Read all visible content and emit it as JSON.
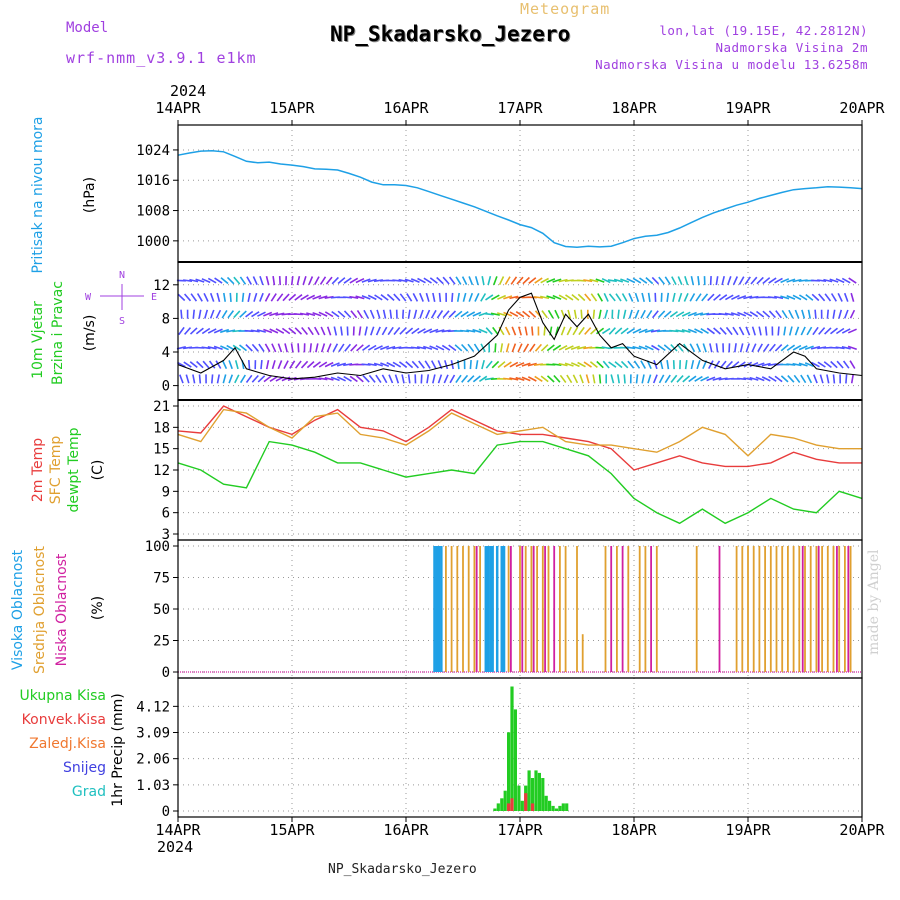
{
  "header": {
    "model_label": "Model",
    "model_name": "wrf-nmm_v3.9.1 e1km",
    "meteogram": "Meteogram",
    "station": "NP_Skadarsko_Jezero",
    "lonlat": "lon,lat (19.15E, 42.2812N)",
    "elevation": "Nadmorska Visina 2m",
    "model_elevation": "Nadmorska Visina u modelu 13.6258m"
  },
  "time_axis": {
    "year": "2024",
    "labels": [
      "14APR",
      "15APR",
      "16APR",
      "17APR",
      "18APR",
      "19APR",
      "20APR"
    ]
  },
  "footer": "NP_Skadarsko_Jezero",
  "watermark": "made by Angel",
  "colors": {
    "pressure": "#1ea0e6",
    "temp2m": "#e83c3c",
    "sfc": "#e0a030",
    "dewpt": "#22cc22",
    "high_cloud": "#1ea0e6",
    "mid_cloud": "#e0a030",
    "low_cloud": "#d020a0",
    "total_precip": "#22cc22",
    "conv_precip": "#e83c3c",
    "frozen_precip": "#f07830",
    "snow": "#4040e0",
    "grad": "#20c0c0"
  },
  "chart_data": [
    {
      "type": "line",
      "panel": "pressure",
      "ylabel_main": "Pritisak na nivou mora",
      "unit": "(hPa)",
      "yticks": [
        "1024",
        "1016",
        "1008",
        "1000"
      ],
      "ylim": [
        996,
        1029
      ],
      "x_days": [
        0,
        0.1,
        0.2,
        0.3,
        0.4,
        0.5,
        0.6,
        0.7,
        0.8,
        0.9,
        1.0,
        1.1,
        1.2,
        1.3,
        1.4,
        1.5,
        1.6,
        1.7,
        1.8,
        1.9,
        2.0,
        2.1,
        2.2,
        2.3,
        2.4,
        2.5,
        2.6,
        2.7,
        2.8,
        2.9,
        3.0,
        3.1,
        3.2,
        3.3,
        3.4,
        3.5,
        3.6,
        3.7,
        3.8,
        3.9,
        4.0,
        4.1,
        4.2,
        4.3,
        4.4,
        4.5,
        4.6,
        4.7,
        4.8,
        4.9,
        5.0,
        5.1,
        5.2,
        5.3,
        5.4,
        5.5,
        5.6,
        5.7,
        5.8,
        5.9,
        6.0
      ],
      "values": [
        1022.6,
        1023.2,
        1023.7,
        1023.8,
        1023.5,
        1022.3,
        1021.0,
        1020.6,
        1020.8,
        1020.3,
        1020.0,
        1019.6,
        1019.0,
        1018.9,
        1018.7,
        1017.8,
        1016.8,
        1015.5,
        1014.8,
        1014.8,
        1014.6,
        1014.0,
        1013.0,
        1012.0,
        1011.0,
        1010.0,
        1009.0,
        1007.8,
        1006.6,
        1005.5,
        1004.3,
        1003.5,
        1002.0,
        999.5,
        998.5,
        998.3,
        998.6,
        998.4,
        998.6,
        999.5,
        1000.6,
        1001.2,
        1001.5,
        1002.2,
        1003.4,
        1004.8,
        1006.2,
        1007.4,
        1008.4,
        1009.4,
        1010.2,
        1011.2,
        1012.0,
        1012.8,
        1013.5,
        1013.8,
        1014.0,
        1014.3,
        1014.2,
        1014.0,
        1013.8
      ]
    },
    {
      "type": "line",
      "panel": "wind",
      "ylabel_main": "10m Vjetar",
      "ylabel_sub": "Brzina i Pravac",
      "unit": "(m/s)",
      "compass": {
        "n": "N",
        "s": "S",
        "w": "W",
        "e": "E"
      },
      "yticks": [
        "12",
        "8",
        "4",
        "0"
      ],
      "ylim": [
        -1,
        14
      ],
      "x_days": [
        0,
        0.2,
        0.4,
        0.5,
        0.6,
        0.8,
        1.0,
        1.2,
        1.4,
        1.6,
        1.8,
        2.0,
        2.2,
        2.4,
        2.6,
        2.8,
        2.9,
        3.0,
        3.1,
        3.2,
        3.3,
        3.4,
        3.5,
        3.6,
        3.7,
        3.8,
        3.9,
        4.0,
        4.2,
        4.4,
        4.6,
        4.8,
        5.0,
        5.2,
        5.4,
        5.5,
        5.6,
        5.8,
        6.0
      ],
      "speed": [
        2.5,
        1.5,
        3.0,
        4.5,
        2.0,
        1.2,
        0.8,
        1.0,
        1.5,
        1.2,
        2.0,
        1.5,
        1.8,
        2.5,
        3.5,
        6.0,
        9.0,
        10.5,
        11.0,
        7.5,
        5.5,
        8.5,
        7.0,
        8.5,
        6.0,
        4.5,
        5.0,
        3.5,
        2.5,
        5.0,
        3.0,
        2.0,
        2.5,
        2.0,
        4.0,
        3.5,
        2.0,
        1.5,
        1.2
      ]
    },
    {
      "type": "line",
      "panel": "temperature",
      "ylabel_lines": [
        "2m Temp",
        "SFC Temp",
        "dewpt Temp"
      ],
      "unit": "(C)",
      "yticks": [
        "21",
        "18",
        "15",
        "12",
        "9",
        "6",
        "3"
      ],
      "ylim": [
        3,
        21
      ],
      "x_days": [
        0,
        0.2,
        0.4,
        0.6,
        0.8,
        1.0,
        1.2,
        1.4,
        1.6,
        1.8,
        2.0,
        2.2,
        2.4,
        2.6,
        2.8,
        3.0,
        3.2,
        3.4,
        3.6,
        3.8,
        4.0,
        4.2,
        4.4,
        4.6,
        4.8,
        5.0,
        5.2,
        5.4,
        5.6,
        5.8,
        6.0
      ],
      "series": [
        {
          "name": "2m Temp",
          "values": [
            17.5,
            17.2,
            21.0,
            19.5,
            18.0,
            17.0,
            19.0,
            20.5,
            18.0,
            17.5,
            16.0,
            18.0,
            20.5,
            19.0,
            17.5,
            17.0,
            17.0,
            16.5,
            16.0,
            15.0,
            12.0,
            13.0,
            14.0,
            13.0,
            12.5,
            12.5,
            13.0,
            14.5,
            13.5,
            13.0,
            13.0
          ]
        },
        {
          "name": "SFC Temp",
          "values": [
            17.0,
            16.0,
            20.5,
            20.0,
            18.0,
            16.5,
            19.5,
            20.0,
            17.0,
            16.5,
            15.5,
            17.5,
            20.0,
            18.5,
            17.0,
            17.5,
            18.0,
            16.0,
            15.5,
            15.5,
            15.0,
            14.5,
            16.0,
            18.0,
            17.0,
            14.0,
            17.0,
            16.5,
            15.5,
            15.0,
            15.0
          ]
        },
        {
          "name": "dewpt Temp",
          "values": [
            13.0,
            12.0,
            10.0,
            9.5,
            16.0,
            15.5,
            14.5,
            13.0,
            13.0,
            12.0,
            11.0,
            11.5,
            12.0,
            11.5,
            15.5,
            16.0,
            16.0,
            15.0,
            14.0,
            11.5,
            8.0,
            6.0,
            4.5,
            6.5,
            4.5,
            6.0,
            8.0,
            6.5,
            6.0,
            9.0,
            8.0
          ]
        }
      ]
    },
    {
      "type": "bar",
      "panel": "cloud",
      "ylabel_lines": [
        "Visoka Oblacnost",
        "Srednja Oblacnost",
        "Niska Oblacnost"
      ],
      "unit": "(%)",
      "yticks": [
        "100",
        "75",
        "50",
        "25",
        "0"
      ],
      "ylim": [
        0,
        100
      ],
      "series": [
        {
          "name": "Visoka Oblacnost",
          "x_days": [
            2.25,
            2.27,
            2.29,
            2.31,
            2.7,
            2.72,
            2.74,
            2.76,
            2.8,
            2.84,
            2.86
          ],
          "values": [
            100,
            100,
            100,
            100,
            100,
            100,
            100,
            100,
            100,
            100,
            100
          ]
        },
        {
          "name": "Srednja Oblacnost",
          "x_days": [
            2.35,
            2.4,
            2.45,
            2.5,
            2.55,
            2.6,
            2.65,
            2.9,
            3.0,
            3.05,
            3.1,
            3.15,
            3.2,
            3.25,
            3.35,
            3.4,
            3.5,
            3.55,
            3.75,
            3.85,
            3.95,
            4.05,
            4.1,
            4.2,
            4.55,
            4.9,
            4.95,
            5.0,
            5.05,
            5.1,
            5.15,
            5.2,
            5.25,
            5.3,
            5.35,
            5.4,
            5.45,
            5.5,
            5.55,
            5.6,
            5.65,
            5.7,
            5.75,
            5.8,
            5.85,
            5.9
          ],
          "values": [
            100,
            100,
            100,
            100,
            100,
            100,
            100,
            100,
            100,
            100,
            100,
            100,
            100,
            100,
            100,
            100,
            100,
            30,
            100,
            100,
            100,
            100,
            100,
            100,
            100,
            100,
            100,
            100,
            100,
            100,
            100,
            100,
            100,
            100,
            100,
            100,
            100,
            100,
            100,
            100,
            100,
            100,
            100,
            100,
            100,
            100
          ]
        },
        {
          "name": "Niska Oblacnost",
          "x_days": [
            2.62,
            2.92,
            3.02,
            3.12,
            3.22,
            3.3,
            3.8,
            3.9,
            4.15,
            4.75,
            5.48,
            5.62,
            5.78,
            5.88
          ],
          "values": [
            100,
            100,
            100,
            100,
            100,
            100,
            100,
            100,
            100,
            100,
            100,
            100,
            100,
            100
          ]
        }
      ]
    },
    {
      "type": "bar",
      "panel": "precip",
      "legend": [
        "Ukupna Kisa",
        "Konvek.Kisa",
        "Zaledj.Kisa",
        "Snijeg",
        "Grad"
      ],
      "unit": "1hr Precip (mm)",
      "yticks": [
        "4.12",
        "3.09",
        "2.06",
        "1.03",
        "0"
      ],
      "ylim": [
        0,
        5.0
      ],
      "series": [
        {
          "name": "Ukupna Kisa",
          "x_days": [
            2.78,
            2.81,
            2.84,
            2.87,
            2.9,
            2.93,
            2.96,
            2.99,
            3.02,
            3.05,
            3.08,
            3.11,
            3.14,
            3.17,
            3.2,
            3.23,
            3.26,
            3.29,
            3.32,
            3.35,
            3.38,
            3.41
          ],
          "values": [
            0.1,
            0.3,
            0.5,
            0.8,
            3.1,
            4.9,
            4.0,
            1.0,
            0.4,
            1.0,
            1.6,
            1.3,
            1.6,
            1.5,
            1.3,
            0.6,
            0.4,
            0.2,
            0.1,
            0.2,
            0.3,
            0.3
          ]
        },
        {
          "name": "Konvek.Kisa",
          "x_days": [
            2.9,
            2.93,
            3.05,
            3.11
          ],
          "values": [
            0.3,
            0.5,
            0.7,
            0.3
          ]
        }
      ]
    }
  ]
}
